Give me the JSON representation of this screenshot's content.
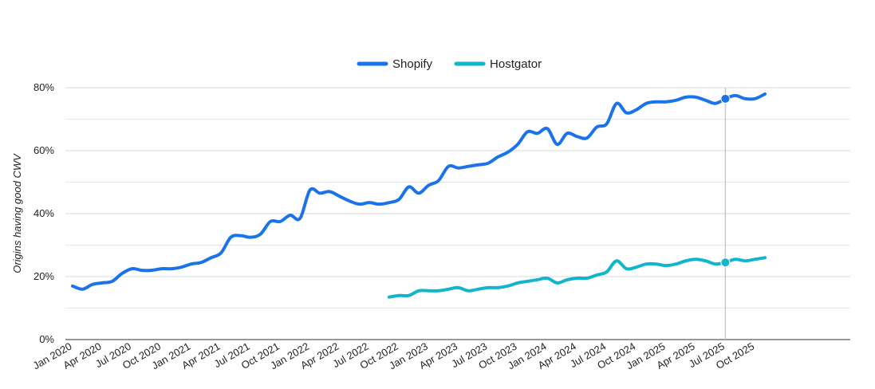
{
  "chart_data": {
    "type": "line",
    "title": "",
    "xlabel": "",
    "ylabel": "Origins having good CWV",
    "ylim": [
      0,
      80
    ],
    "y_ticks": [
      "0%",
      "20%",
      "40%",
      "60%",
      "80%"
    ],
    "x_ticks": [
      "Jan 2020",
      "Apr 2020",
      "Jul 2020",
      "Oct 2020",
      "Jan 2021",
      "Apr 2021",
      "Jul 2021",
      "Oct 2021",
      "Jan 2022",
      "Apr 2022",
      "Jul 2022",
      "Oct 2022",
      "Jan 2023",
      "Apr 2023",
      "Jul 2023",
      "Oct 2023",
      "Jan 2024",
      "Apr 2024",
      "Jul 2024",
      "Oct 2024",
      "Jan 2025",
      "Apr 2025",
      "Jul 2025",
      "Oct 2025"
    ],
    "x_start": "2020-01",
    "grid": true,
    "legend_position": "top-center",
    "hover_marker_month": "2025-07",
    "series": [
      {
        "name": "Shopify",
        "color": "#1a73e8",
        "values": [
          17,
          16,
          17.5,
          18,
          18.5,
          21,
          22.5,
          22,
          22,
          22.5,
          22.5,
          23,
          24,
          24.5,
          26,
          27.5,
          32.5,
          33,
          32.5,
          33.5,
          37.5,
          37.5,
          39.5,
          38.5,
          47.5,
          46.5,
          47,
          45.5,
          44,
          43,
          43.5,
          43,
          43.5,
          44.5,
          48.5,
          46.5,
          49,
          50.5,
          55,
          54.5,
          55,
          55.5,
          56,
          58,
          59.5,
          62,
          66,
          65.5,
          67,
          62,
          65.5,
          64.5,
          64,
          67.5,
          68.5,
          75,
          72,
          73,
          75,
          75.5,
          75.5,
          76,
          77,
          77,
          76,
          75,
          76.5,
          77.5,
          76.5,
          76.5,
          78
        ]
      },
      {
        "name": "Hostgator",
        "color": "#12b5cb",
        "values": [
          null,
          null,
          null,
          null,
          null,
          null,
          null,
          null,
          null,
          null,
          null,
          null,
          null,
          null,
          null,
          null,
          null,
          null,
          null,
          null,
          null,
          null,
          null,
          null,
          null,
          null,
          null,
          null,
          null,
          null,
          null,
          null,
          13.5,
          14,
          14,
          15.5,
          15.5,
          15.5,
          16,
          16.5,
          15.5,
          16,
          16.5,
          16.5,
          17,
          18,
          18.5,
          19,
          19.5,
          18,
          19,
          19.5,
          19.5,
          20.5,
          21.5,
          25,
          22.5,
          23,
          24,
          24,
          23.5,
          24,
          25,
          25.5,
          25,
          24,
          24.5,
          25.5,
          25,
          25.5,
          26
        ]
      }
    ]
  }
}
